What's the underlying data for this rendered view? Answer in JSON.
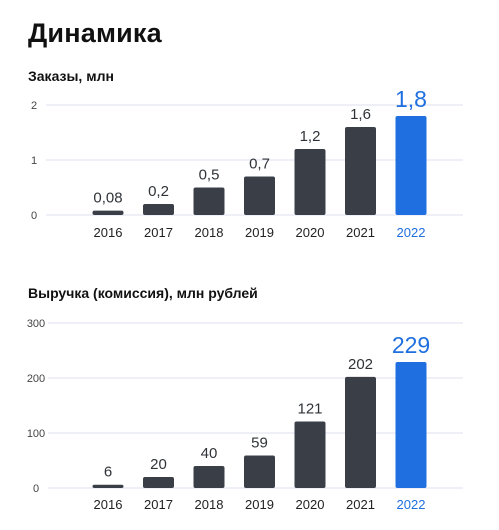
{
  "page": {
    "title": "Динамика"
  },
  "colors": {
    "bar": "#3a3f47",
    "highlight": "#1f6fe0"
  },
  "chart_data": [
    {
      "type": "bar",
      "title": "Заказы, млн",
      "categories": [
        "2016",
        "2017",
        "2018",
        "2019",
        "2020",
        "2021",
        "2022"
      ],
      "values": [
        0.08,
        0.2,
        0.5,
        0.7,
        1.2,
        1.6,
        1.8
      ],
      "value_labels": [
        "0,08",
        "0,2",
        "0,5",
        "0,7",
        "1,2",
        "1,6",
        "1,8"
      ],
      "y_ticks": [
        0,
        1,
        2
      ],
      "ylim": [
        0,
        2
      ],
      "highlight_index": 6,
      "grid": true
    },
    {
      "type": "bar",
      "title": "Выручка (комиссия), млн рублей",
      "categories": [
        "2016",
        "2017",
        "2018",
        "2019",
        "2020",
        "2021",
        "2022"
      ],
      "values": [
        6,
        20,
        40,
        59,
        121,
        202,
        229
      ],
      "value_labels": [
        "6",
        "20",
        "40",
        "59",
        "121",
        "202",
        "229"
      ],
      "y_ticks": [
        0,
        100,
        200,
        300
      ],
      "ylim": [
        0,
        300
      ],
      "highlight_index": 6,
      "grid": true
    }
  ]
}
